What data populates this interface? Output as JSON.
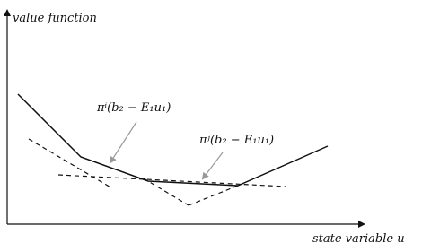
{
  "axes": {
    "y_label": "value function",
    "x_label": "state variable u"
  },
  "annotations": [
    {
      "label": "πⁱ(b₂ − E₁u₁)"
    },
    {
      "label": "πʲ(b₂ − E₁u₁)"
    }
  ]
}
